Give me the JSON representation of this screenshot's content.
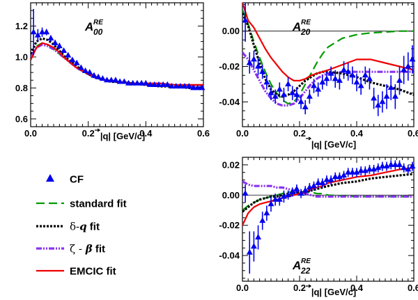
{
  "chart_data": [
    {
      "type": "scatter",
      "title": "A",
      "title_sub": "00",
      "title_sup": "RE",
      "xlabel": "|q| [GeV/c]",
      "xlim": [
        0.0,
        0.6
      ],
      "ylim": [
        0.55,
        1.35
      ],
      "xticks": [
        "0.0",
        "0.2",
        "0.4",
        "0.6"
      ],
      "yticks": [
        "0.6",
        "0.8",
        "1.0",
        "1.2"
      ],
      "ytick_values": [
        0.6,
        0.8,
        1.0,
        1.2
      ],
      "zero_line": false,
      "cf": {
        "x": [
          0.01,
          0.025,
          0.04,
          0.055,
          0.07,
          0.085,
          0.1,
          0.115,
          0.13,
          0.145,
          0.16,
          0.175,
          0.19,
          0.205,
          0.22,
          0.235,
          0.25,
          0.265,
          0.28,
          0.295,
          0.31,
          0.325,
          0.34,
          0.355,
          0.37,
          0.385,
          0.4,
          0.415,
          0.43,
          0.445,
          0.46,
          0.475,
          0.49,
          0.505,
          0.52,
          0.535,
          0.55,
          0.565,
          0.58,
          0.595
        ],
        "y": [
          1.16,
          1.14,
          1.16,
          1.16,
          1.12,
          1.09,
          1.07,
          1.04,
          1.01,
          0.98,
          0.96,
          0.93,
          0.91,
          0.9,
          0.88,
          0.87,
          0.86,
          0.85,
          0.85,
          0.85,
          0.84,
          0.84,
          0.83,
          0.83,
          0.83,
          0.83,
          0.83,
          0.82,
          0.82,
          0.82,
          0.82,
          0.82,
          0.81,
          0.81,
          0.81,
          0.81,
          0.81,
          0.8,
          0.8,
          0.8
        ],
        "err": [
          0.15,
          0.04,
          0.03,
          0.02,
          0.02,
          0.02,
          0.02,
          0.01,
          0.01,
          0.01,
          0.01,
          0.01,
          0.01,
          0.01,
          0.01,
          0.01,
          0.01,
          0.01,
          0.01,
          0.01,
          0.01,
          0.01,
          0.01,
          0.01,
          0.01,
          0.01,
          0.01,
          0.01,
          0.01,
          0.01,
          0.01,
          0.01,
          0.01,
          0.01,
          0.01,
          0.01,
          0.01,
          0.01,
          0.01,
          0.01
        ]
      },
      "curves": {
        "x": [
          0.0,
          0.02,
          0.04,
          0.06,
          0.08,
          0.1,
          0.12,
          0.14,
          0.16,
          0.18,
          0.2,
          0.22,
          0.24,
          0.26,
          0.28,
          0.3,
          0.35,
          0.4,
          0.45,
          0.5,
          0.55,
          0.6
        ],
        "standard": [
          1.0,
          1.07,
          1.09,
          1.08,
          1.05,
          1.02,
          0.99,
          0.96,
          0.93,
          0.91,
          0.89,
          0.87,
          0.86,
          0.85,
          0.84,
          0.84,
          0.83,
          0.82,
          0.82,
          0.81,
          0.81,
          0.81
        ],
        "delta_q": [
          1.02,
          1.1,
          1.12,
          1.11,
          1.08,
          1.04,
          1.0,
          0.97,
          0.94,
          0.91,
          0.89,
          0.87,
          0.86,
          0.85,
          0.84,
          0.84,
          0.83,
          0.82,
          0.81,
          0.81,
          0.8,
          0.8
        ],
        "zeta_beta": [
          1.0,
          1.06,
          1.08,
          1.07,
          1.05,
          1.02,
          0.99,
          0.96,
          0.93,
          0.91,
          0.89,
          0.87,
          0.86,
          0.85,
          0.84,
          0.84,
          0.83,
          0.82,
          0.82,
          0.81,
          0.81,
          0.81
        ],
        "emcic": [
          0.98,
          1.06,
          1.09,
          1.08,
          1.06,
          1.03,
          0.99,
          0.96,
          0.93,
          0.91,
          0.89,
          0.88,
          0.86,
          0.85,
          0.85,
          0.84,
          0.83,
          0.83,
          0.83,
          0.82,
          0.82,
          0.82
        ]
      }
    },
    {
      "type": "scatter",
      "title": "A",
      "title_sub": "20",
      "title_sup": "RE",
      "xlabel": "|q| [GeV/c]",
      "xlim": [
        0.0,
        0.6
      ],
      "ylim": [
        -0.054,
        0.016
      ],
      "xticks": [
        "0.0",
        "0.2",
        "0.4",
        "0.6"
      ],
      "yticks": [
        "-0.04",
        "-0.02",
        "0.00"
      ],
      "ytick_values": [
        -0.04,
        -0.02,
        0.0
      ],
      "zero_line": true,
      "cf": {
        "x": [
          0.01,
          0.025,
          0.04,
          0.055,
          0.07,
          0.085,
          0.1,
          0.115,
          0.13,
          0.145,
          0.16,
          0.175,
          0.19,
          0.205,
          0.22,
          0.235,
          0.25,
          0.265,
          0.28,
          0.295,
          0.31,
          0.325,
          0.34,
          0.355,
          0.37,
          0.385,
          0.4,
          0.415,
          0.43,
          0.445,
          0.46,
          0.475,
          0.49,
          0.505,
          0.52,
          0.535,
          0.55,
          0.565,
          0.58,
          0.595
        ],
        "y": [
          0.006,
          -0.018,
          -0.016,
          -0.02,
          -0.023,
          -0.029,
          -0.035,
          -0.037,
          -0.033,
          -0.036,
          -0.03,
          -0.035,
          -0.036,
          -0.04,
          -0.043,
          -0.037,
          -0.031,
          -0.033,
          -0.029,
          -0.027,
          -0.024,
          -0.027,
          -0.028,
          -0.022,
          -0.023,
          -0.025,
          -0.029,
          -0.031,
          -0.025,
          -0.027,
          -0.038,
          -0.042,
          -0.04,
          -0.037,
          -0.032,
          -0.037,
          -0.028,
          -0.022,
          -0.02,
          -0.016
        ],
        "err": [
          0.012,
          0.006,
          0.005,
          0.005,
          0.004,
          0.004,
          0.004,
          0.004,
          0.004,
          0.004,
          0.004,
          0.004,
          0.004,
          0.004,
          0.004,
          0.004,
          0.004,
          0.004,
          0.004,
          0.004,
          0.004,
          0.005,
          0.005,
          0.005,
          0.005,
          0.005,
          0.005,
          0.005,
          0.005,
          0.006,
          0.006,
          0.006,
          0.006,
          0.007,
          0.007,
          0.007,
          0.008,
          0.008,
          0.008,
          0.008
        ]
      },
      "curves": {
        "x": [
          0.0,
          0.02,
          0.04,
          0.06,
          0.08,
          0.1,
          0.12,
          0.14,
          0.16,
          0.18,
          0.2,
          0.22,
          0.24,
          0.26,
          0.28,
          0.3,
          0.35,
          0.4,
          0.45,
          0.5,
          0.55,
          0.6
        ],
        "standard": [
          0.012,
          0.004,
          -0.006,
          -0.015,
          -0.023,
          -0.03,
          -0.035,
          -0.039,
          -0.041,
          -0.04,
          -0.036,
          -0.03,
          -0.024,
          -0.018,
          -0.013,
          -0.009,
          -0.004,
          -0.002,
          -0.001,
          -0.0005,
          0.0,
          0.0
        ],
        "delta_q": [
          0.01,
          0.003,
          -0.008,
          -0.018,
          -0.027,
          -0.033,
          -0.036,
          -0.037,
          -0.036,
          -0.034,
          -0.031,
          -0.028,
          -0.026,
          -0.024,
          -0.023,
          -0.023,
          -0.024,
          -0.026,
          -0.029,
          -0.031,
          -0.033,
          -0.036
        ],
        "zeta_beta": [
          -0.012,
          -0.016,
          -0.022,
          -0.028,
          -0.034,
          -0.038,
          -0.041,
          -0.042,
          -0.042,
          -0.041,
          -0.038,
          -0.034,
          -0.03,
          -0.027,
          -0.025,
          -0.024,
          -0.023,
          -0.023,
          -0.023,
          -0.023,
          -0.023,
          -0.023
        ],
        "emcic": [
          0.016,
          0.006,
          0.002,
          -0.004,
          -0.01,
          -0.015,
          -0.019,
          -0.023,
          -0.026,
          -0.028,
          -0.028,
          -0.027,
          -0.025,
          -0.024,
          -0.023,
          -0.022,
          -0.019,
          -0.016,
          -0.016,
          -0.018,
          -0.02,
          -0.022
        ]
      }
    },
    {
      "type": "scatter",
      "title": "A",
      "title_sub": "22",
      "title_sup": "RE",
      "xlabel": "|q| [GeV/c]",
      "xlim": [
        0.0,
        0.6
      ],
      "ylim": [
        -0.057,
        0.025
      ],
      "xticks": [
        "0.0",
        "0.2",
        "0.4",
        "0.6"
      ],
      "yticks": [
        "-0.04",
        "-0.02",
        "0.00",
        "0.02"
      ],
      "ytick_values": [
        -0.04,
        -0.02,
        0.0,
        0.02
      ],
      "zero_line": true,
      "cf": {
        "x": [
          0.01,
          0.025,
          0.04,
          0.055,
          0.07,
          0.085,
          0.1,
          0.115,
          0.13,
          0.145,
          0.16,
          0.175,
          0.19,
          0.205,
          0.22,
          0.235,
          0.25,
          0.265,
          0.28,
          0.295,
          0.31,
          0.325,
          0.34,
          0.355,
          0.37,
          0.385,
          0.4,
          0.415,
          0.43,
          0.445,
          0.46,
          0.475,
          0.49,
          0.505,
          0.52,
          0.535,
          0.55,
          0.565,
          0.58,
          0.595
        ],
        "y": [
          0.001,
          -0.038,
          -0.034,
          -0.028,
          -0.017,
          -0.012,
          -0.006,
          -0.003,
          -0.003,
          -0.001,
          0.0,
          0.002,
          0.004,
          0.001,
          0.003,
          0.005,
          0.006,
          0.008,
          0.008,
          0.01,
          0.01,
          0.012,
          0.012,
          0.013,
          0.015,
          0.015,
          0.015,
          0.016,
          0.016,
          0.017,
          0.017,
          0.018,
          0.019,
          0.019,
          0.02,
          0.02,
          0.02,
          0.018,
          0.017,
          0.019
        ],
        "err": [
          0.006,
          0.014,
          0.01,
          0.008,
          0.006,
          0.005,
          0.005,
          0.004,
          0.004,
          0.004,
          0.003,
          0.003,
          0.003,
          0.003,
          0.003,
          0.003,
          0.003,
          0.003,
          0.003,
          0.003,
          0.003,
          0.003,
          0.003,
          0.003,
          0.003,
          0.003,
          0.003,
          0.003,
          0.003,
          0.003,
          0.003,
          0.003,
          0.003,
          0.003,
          0.003,
          0.003,
          0.003,
          0.003,
          0.003,
          0.003
        ]
      },
      "curves": {
        "x": [
          0.0,
          0.02,
          0.04,
          0.06,
          0.08,
          0.1,
          0.12,
          0.14,
          0.16,
          0.18,
          0.2,
          0.22,
          0.24,
          0.26,
          0.28,
          0.3,
          0.35,
          0.4,
          0.45,
          0.5,
          0.55,
          0.6
        ],
        "standard": [
          -0.01,
          -0.007,
          -0.005,
          -0.003,
          -0.002,
          -0.001,
          0.0,
          0.001,
          0.002,
          0.002,
          0.002,
          0.002,
          0.002,
          0.001,
          0.001,
          0.0,
          -0.0005,
          -0.001,
          -0.001,
          -0.001,
          -0.001,
          -0.001
        ],
        "delta_q": [
          -0.011,
          -0.008,
          -0.005,
          -0.003,
          -0.002,
          -0.001,
          -0.001,
          0.0,
          0.001,
          0.001,
          0.002,
          0.002,
          0.003,
          0.004,
          0.005,
          0.006,
          0.008,
          0.009,
          0.011,
          0.012,
          0.013,
          0.014
        ],
        "zeta_beta": [
          0.009,
          0.007,
          0.006,
          0.006,
          0.006,
          0.006,
          0.005,
          0.005,
          0.004,
          0.003,
          0.002,
          0.001,
          0.0,
          -0.001,
          -0.001,
          -0.001,
          -0.001,
          -0.001,
          -0.001,
          -0.001,
          -0.001,
          -0.001
        ],
        "emcic": [
          -0.02,
          -0.012,
          -0.008,
          -0.006,
          -0.005,
          -0.004,
          -0.003,
          -0.002,
          -0.001,
          0.0,
          0.001,
          0.002,
          0.004,
          0.005,
          0.006,
          0.008,
          0.01,
          0.012,
          0.013,
          0.015,
          0.017,
          0.018
        ]
      }
    }
  ],
  "legend": {
    "items": [
      {
        "key": "cf",
        "label": "CF",
        "color": "#0000ee"
      },
      {
        "key": "standard",
        "label": "standard fit",
        "color": "#009900"
      },
      {
        "key": "delta_q",
        "label_greek": "δ",
        "label_dash": "-",
        "label_var": "q",
        "label_rest": " fit",
        "color": "#000000"
      },
      {
        "key": "zeta_beta",
        "label_greek": "ζ",
        "label_dash": " - ",
        "label_var": "β",
        "label_rest": " fit",
        "color": "#8833ee"
      },
      {
        "key": "emcic",
        "label": "EMCIC fit",
        "color": "#ee0000"
      }
    ]
  },
  "colors": {
    "cf": "#0000ee",
    "standard": "#009900",
    "delta_q": "#000000",
    "zeta_beta": "#8833ee",
    "emcic": "#ee0000"
  }
}
